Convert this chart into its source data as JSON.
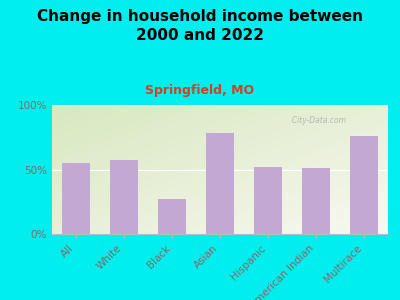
{
  "title": "Change in household income between\n2000 and 2022",
  "subtitle": "Springfield, MO",
  "categories": [
    "All",
    "White",
    "Black",
    "Asian",
    "Hispanic",
    "American Indian",
    "Multirace"
  ],
  "values": [
    55,
    57,
    27,
    78,
    52,
    51,
    76
  ],
  "bar_color": "#C4A8D4",
  "background_color": "#00EEEE",
  "plot_bg_color_tl": "#D8E8C0",
  "plot_bg_color_br": "#F0F0E0",
  "title_color": "#000000",
  "subtitle_color": "#CC4422",
  "tick_color": "#886666",
  "ylim": [
    0,
    100
  ],
  "yticks": [
    0,
    50,
    100
  ],
  "ytick_labels": [
    "0%",
    "50%",
    "100%"
  ],
  "watermark": "  City-Data.com",
  "title_fontsize": 11,
  "subtitle_fontsize": 9,
  "tick_fontsize": 7.5
}
